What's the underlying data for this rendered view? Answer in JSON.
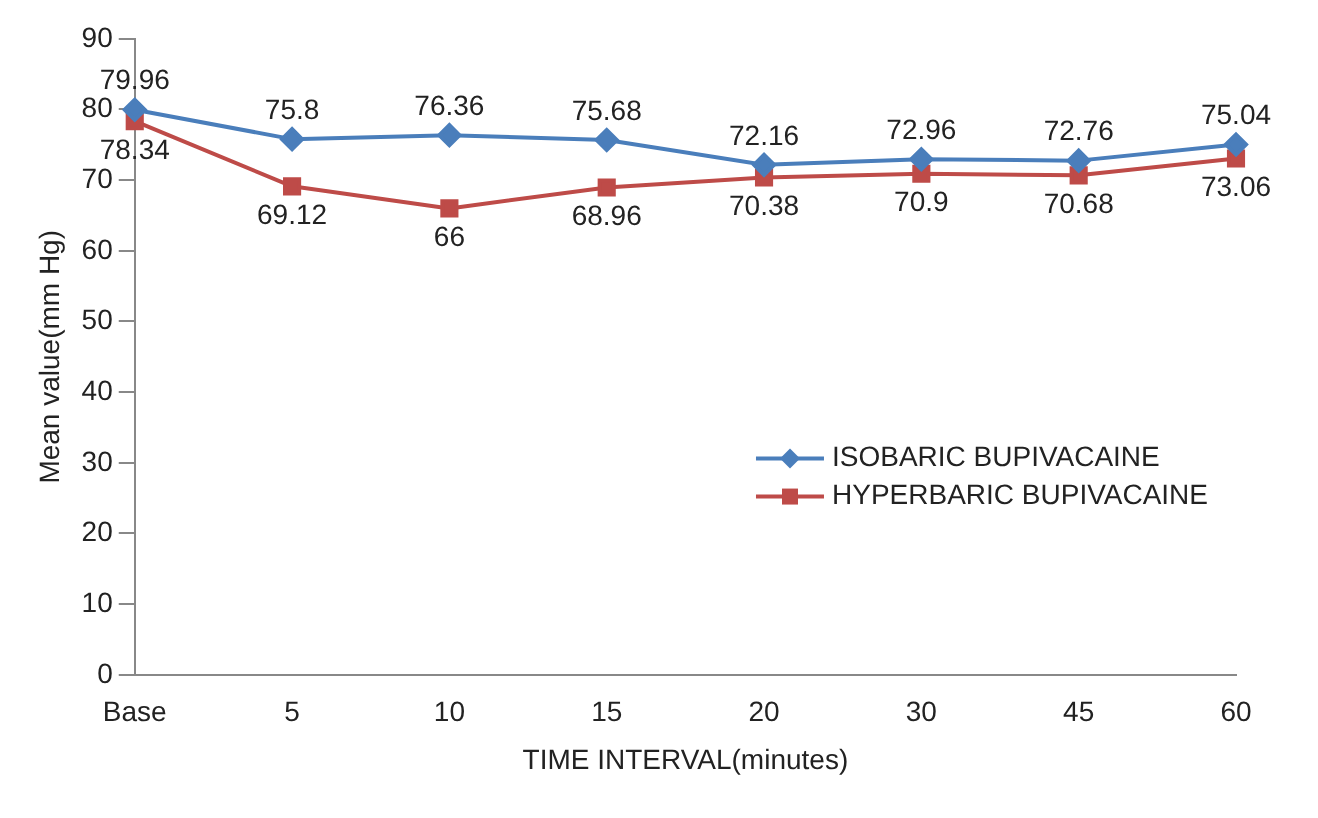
{
  "chart_data": {
    "type": "line",
    "xlabel": "TIME INTERVAL(minutes)",
    "ylabel": "Mean value(mm Hg)",
    "categories": [
      "Base",
      "5",
      "10",
      "15",
      "20",
      "30",
      "45",
      "60"
    ],
    "series": [
      {
        "name": "ISOBARIC BUPIVACAINE",
        "color": "#4a7ebb",
        "marker": "diamond",
        "values": [
          79.96,
          75.8,
          76.36,
          75.68,
          72.16,
          72.96,
          72.76,
          75.04
        ]
      },
      {
        "name": "HYPERBARIC BUPIVACAINE",
        "color": "#be4b48",
        "marker": "square",
        "values": [
          78.34,
          69.12,
          66,
          68.96,
          70.38,
          70.9,
          70.68,
          73.06
        ]
      }
    ],
    "ylim": [
      0,
      90
    ],
    "yticks": [
      0,
      10,
      20,
      30,
      40,
      50,
      60,
      70,
      80,
      90
    ],
    "grid": false,
    "legend": "right",
    "data_labels": true,
    "line_style": "solid"
  }
}
